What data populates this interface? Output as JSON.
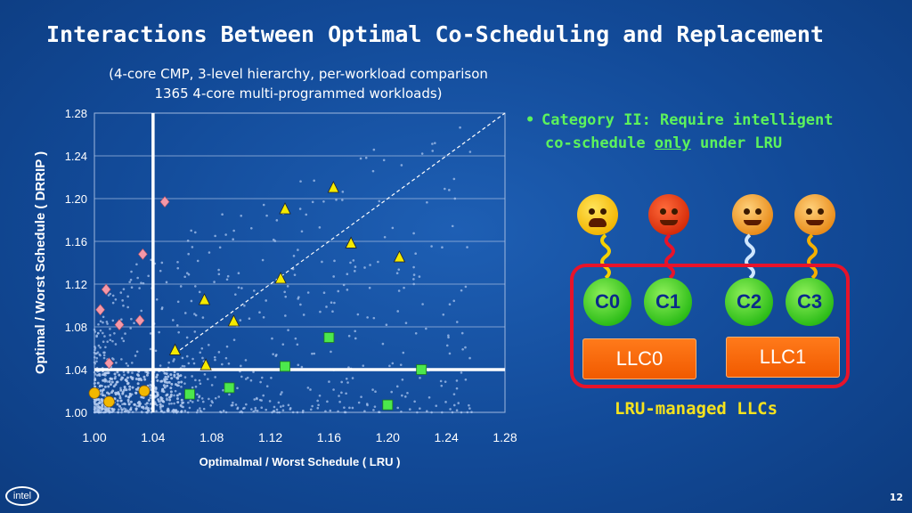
{
  "slide": {
    "title": "Interactions Between Optimal Co-Scheduling and Replacement",
    "subtitle_line1": "(4-core CMP, 3-level hierarchy, per-workload comparison",
    "subtitle_line2": "1365 4-core multi-programmed workloads)",
    "bullet_line1": "Category II:  Require intelligent",
    "bullet_line2_pre": "co-schedule ",
    "bullet_line2_em": "only",
    "bullet_line2_post": " under LRU",
    "page_number": "12",
    "logo_text": "intel"
  },
  "diagram": {
    "cores": [
      "C0",
      "C1",
      "C2",
      "C3"
    ],
    "llcs": [
      "LLC0",
      "LLC1"
    ],
    "caption": "LRU-managed LLCs",
    "face_icons": [
      "crying-face-icon",
      "angry-devil-face-icon",
      "calm-face-icon",
      "calm-face-icon"
    ],
    "colors": {
      "core": "#2fbe1a",
      "llc": "#f15a00",
      "box": "#e8132a",
      "caption": "#f5e21e"
    }
  },
  "chart_data": {
    "type": "scatter",
    "xlabel": "Optimalmal / Worst Schedule ( LRU )",
    "ylabel": "Optimal / Worst Schedule ( DRRIP )",
    "xlim": [
      1.0,
      1.28
    ],
    "ylim": [
      1.0,
      1.28
    ],
    "x_ticks": [
      "1.00",
      "1.04",
      "1.08",
      "1.12",
      "1.16",
      "1.20",
      "1.24",
      "1.28"
    ],
    "y_ticks": [
      "1.00",
      "1.04",
      "1.08",
      "1.12",
      "1.16",
      "1.20",
      "1.24",
      "1.28"
    ],
    "grid": true,
    "diagonal": true,
    "reference_lines": {
      "x": 1.04,
      "y": 1.04
    },
    "series": [
      {
        "marker": "circle",
        "color": "#f2b800",
        "points": [
          [
            1.0,
            1.018
          ],
          [
            1.01,
            1.01
          ],
          [
            1.034,
            1.02
          ]
        ]
      },
      {
        "marker": "diamond",
        "color": "#f598a8",
        "points": [
          [
            1.008,
            1.115
          ],
          [
            1.004,
            1.096
          ],
          [
            1.017,
            1.082
          ],
          [
            1.031,
            1.086
          ],
          [
            1.033,
            1.148
          ],
          [
            1.048,
            1.197
          ],
          [
            1.01,
            1.046
          ]
        ]
      },
      {
        "marker": "triangle",
        "color": "#f5ea00",
        "points": [
          [
            1.055,
            1.058
          ],
          [
            1.076,
            1.044
          ],
          [
            1.075,
            1.105
          ],
          [
            1.095,
            1.085
          ],
          [
            1.127,
            1.125
          ],
          [
            1.13,
            1.19
          ],
          [
            1.163,
            1.21
          ],
          [
            1.175,
            1.158
          ],
          [
            1.208,
            1.145
          ]
        ]
      },
      {
        "marker": "square",
        "color": "#4ce84c",
        "points": [
          [
            1.065,
            1.017
          ],
          [
            1.092,
            1.023
          ],
          [
            1.13,
            1.043
          ],
          [
            1.16,
            1.07
          ],
          [
            1.2,
            1.007
          ],
          [
            1.223,
            1.04
          ]
        ]
      }
    ]
  }
}
